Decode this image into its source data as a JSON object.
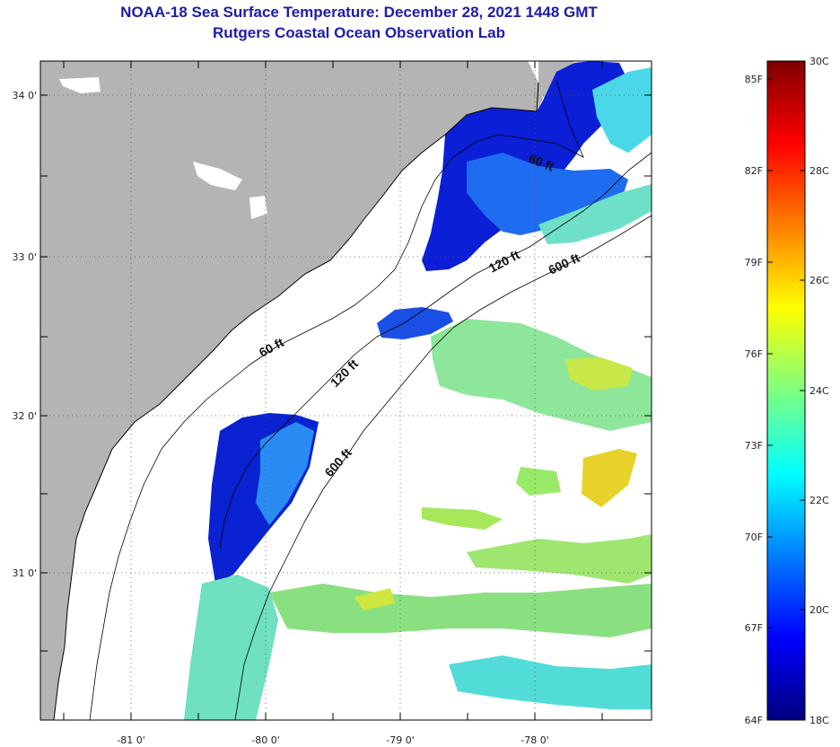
{
  "header": {
    "title": "NOAA-18 Sea Surface Temperature:  December 28, 2021 1448 GMT",
    "subtitle": "Rutgers Coastal Ocean Observation Lab"
  },
  "map": {
    "x_ticks": [
      "-81 0'",
      "-80 0'",
      "-79 0'",
      "-78 0'"
    ],
    "y_ticks": [
      "34 0'",
      "33 0'",
      "32 0'",
      "31 0'"
    ],
    "x_range": [
      -81.65,
      -77.0
    ],
    "y_range": [
      30.2,
      34.2
    ],
    "grid": "dotted",
    "contour_labels": {
      "c60a": "60 ft",
      "c60b": "60 ft",
      "c120a": "120 ft",
      "c120b": "120 ft",
      "c600a": "600 ft",
      "c600b": "600 ft"
    }
  },
  "colorbar": {
    "fahrenheit": [
      "85F",
      "82F",
      "79F",
      "76F",
      "73F",
      "70F",
      "67F",
      "64F"
    ],
    "celsius": [
      "30C",
      "28C",
      "26C",
      "24C",
      "22C",
      "20C",
      "18C"
    ],
    "range_c": [
      18,
      30
    ],
    "colors": [
      "#00007f",
      "#0000ff",
      "#007fff",
      "#00ffff",
      "#7fff7f",
      "#ffff00",
      "#ff7f00",
      "#ff0000",
      "#7f0000"
    ]
  },
  "colors": {
    "land": "#b4b4b4",
    "no_data": "#ffffff",
    "title": "#1c1caa"
  }
}
